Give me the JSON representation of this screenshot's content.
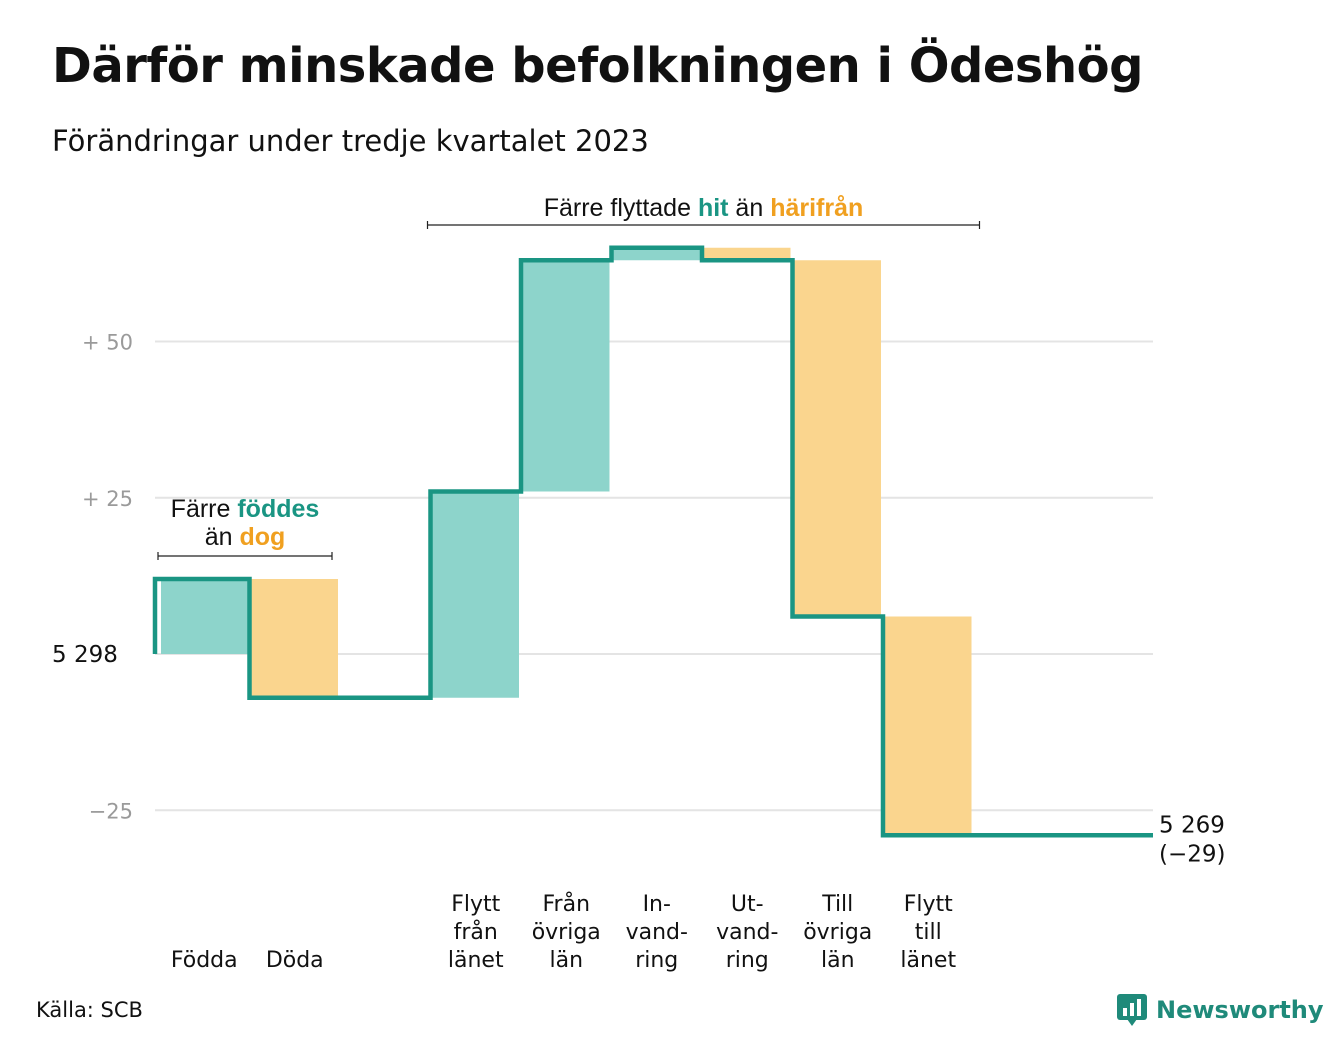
{
  "title": "Därför minskade befolkningen i Ödeshög",
  "subtitle": "Förändringar under tredje kvartalet 2023",
  "source": "Källa: SCB",
  "brand": "Newsworthy",
  "colors": {
    "in": "#8dd4cb",
    "out": "#fad58e",
    "line": "#1a9583",
    "in_text": "#1a9583",
    "out_text": "#f0a020",
    "grid": "#e4e4e4"
  },
  "chart_data": {
    "type": "waterfall",
    "title": "Därför minskade befolkningen i Ödeshög",
    "subtitle": "Förändringar under tredje kvartalet 2023",
    "start_value": 5298,
    "start_label": "5  298",
    "end_value": 5269,
    "end_label": "5 269",
    "end_change_label": "(−29)",
    "ylim": [
      -29,
      65
    ],
    "y_ticks": [
      {
        "value": 50,
        "label": "+  50"
      },
      {
        "value": 25,
        "label": "+  25"
      },
      {
        "value": -25,
        "label": "−25"
      }
    ],
    "steps": [
      {
        "key": "fodda",
        "label_lines": [
          "Födda"
        ],
        "change": 12,
        "kind": "in"
      },
      {
        "key": "doda",
        "label_lines": [
          "Döda"
        ],
        "change": -19,
        "kind": "out"
      },
      {
        "key": "gap",
        "label_lines": [],
        "change": 0,
        "kind": "gap"
      },
      {
        "key": "flytt_fran_lanet",
        "label_lines": [
          "Flytt",
          "från",
          "länet"
        ],
        "change": 33,
        "kind": "in"
      },
      {
        "key": "fran_ovriga_lan",
        "label_lines": [
          "Från",
          "övriga",
          "län"
        ],
        "change": 37,
        "kind": "in"
      },
      {
        "key": "invandring",
        "label_lines": [
          "In-",
          "vand-",
          "ring"
        ],
        "change": 2,
        "kind": "in"
      },
      {
        "key": "utvandring",
        "label_lines": [
          "Ut-",
          "vand-",
          "ring"
        ],
        "change": -2,
        "kind": "out"
      },
      {
        "key": "till_ovriga_lan",
        "label_lines": [
          "Till",
          "övriga",
          "län"
        ],
        "change": -57,
        "kind": "out"
      },
      {
        "key": "flytt_till_lanet",
        "label_lines": [
          "Flytt",
          "till",
          "länet"
        ],
        "change": -35,
        "kind": "out"
      }
    ],
    "annotations": [
      {
        "key": "births",
        "parts": [
          {
            "text": "Färre ",
            "kind": "plain"
          },
          {
            "text": "föddes",
            "kind": "in"
          }
        ],
        "line2": [
          {
            "text": "än ",
            "kind": "plain"
          },
          {
            "text": "dog",
            "kind": "out"
          }
        ]
      },
      {
        "key": "moves",
        "parts": [
          {
            "text": "Färre flyttade ",
            "kind": "plain"
          },
          {
            "text": "hit",
            "kind": "in"
          },
          {
            "text": " än ",
            "kind": "plain"
          },
          {
            "text": "härifrån",
            "kind": "out"
          }
        ]
      }
    ]
  }
}
